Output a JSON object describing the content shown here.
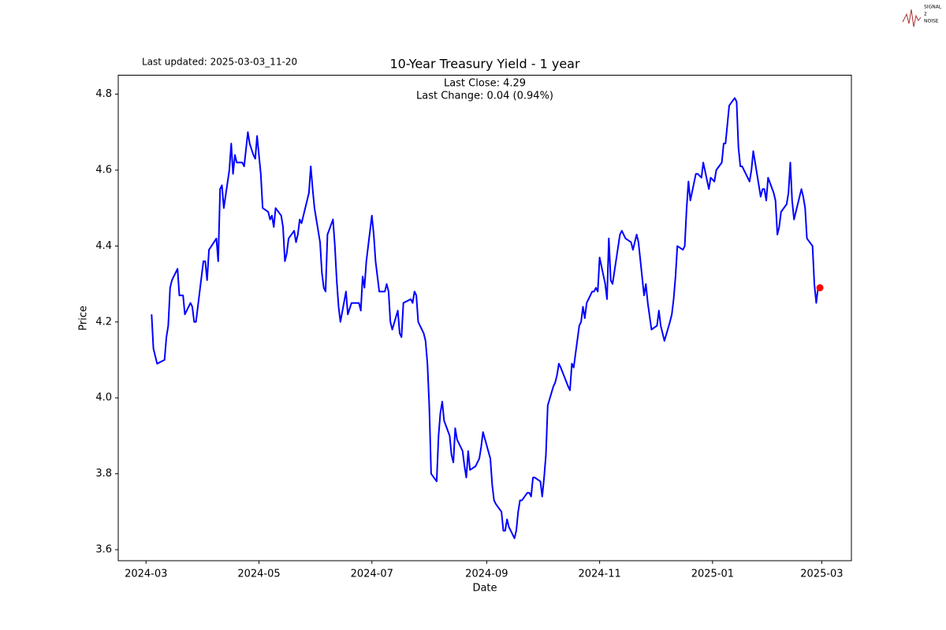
{
  "chart_data": {
    "type": "line",
    "title": "10-Year Treasury Yield - 1 year",
    "updated": "Last updated: 2025-03-03_11-20",
    "annotations": [
      "Last Close: 4.29",
      "Last Change: 0.04 (0.94%)"
    ],
    "logo": [
      "SIGNAL",
      "2",
      "NOISE"
    ],
    "xlabel": "Date",
    "ylabel": "Price",
    "color": "#0000ff",
    "last_marker_color": "#ff0000",
    "xlim": [
      "2024-02-15",
      "2025-03-17"
    ],
    "xticks": [
      {
        "value": "2024-03-01",
        "label": "2024-03"
      },
      {
        "value": "2024-05-01",
        "label": "2024-05"
      },
      {
        "value": "2024-07-01",
        "label": "2024-07"
      },
      {
        "value": "2024-09-01",
        "label": "2024-09"
      },
      {
        "value": "2024-11-01",
        "label": "2024-11"
      },
      {
        "value": "2025-01-01",
        "label": "2025-01"
      },
      {
        "value": "2025-03-01",
        "label": "2025-03"
      }
    ],
    "ylim": [
      3.571,
      4.85
    ],
    "yticks": [
      3.6,
      3.8,
      {
        "value": 4,
        "label": "4.0"
      },
      4.2,
      4.4,
      4.6,
      4.8
    ],
    "x": [
      "2024-03-04",
      "2024-03-05",
      "2024-03-07",
      "2024-03-11",
      "2024-03-12",
      "2024-03-13",
      "2024-03-14",
      "2024-03-15",
      "2024-03-18",
      "2024-03-19",
      "2024-03-21",
      "2024-03-22",
      "2024-03-25",
      "2024-03-26",
      "2024-03-27",
      "2024-03-28",
      "2024-04-01",
      "2024-04-02",
      "2024-04-03",
      "2024-04-04",
      "2024-04-08",
      "2024-04-09",
      "2024-04-10",
      "2024-04-11",
      "2024-04-12",
      "2024-04-15",
      "2024-04-16",
      "2024-04-17",
      "2024-04-18",
      "2024-04-19",
      "2024-04-22",
      "2024-04-23",
      "2024-04-25",
      "2024-04-26",
      "2024-04-28",
      "2024-04-29",
      "2024-04-30",
      "2024-05-02",
      "2024-05-03",
      "2024-05-06",
      "2024-05-07",
      "2024-05-08",
      "2024-05-09",
      "2024-05-10",
      "2024-05-13",
      "2024-05-14",
      "2024-05-15",
      "2024-05-16",
      "2024-05-17",
      "2024-05-20",
      "2024-05-21",
      "2024-05-22",
      "2024-05-23",
      "2024-05-24",
      "2024-05-28",
      "2024-05-29",
      "2024-05-30",
      "2024-05-31",
      "2024-06-03",
      "2024-06-04",
      "2024-06-05",
      "2024-06-06",
      "2024-06-07",
      "2024-06-10",
      "2024-06-11",
      "2024-06-12",
      "2024-06-13",
      "2024-06-14",
      "2024-06-17",
      "2024-06-18",
      "2024-06-20",
      "2024-06-24",
      "2024-06-25",
      "2024-06-26",
      "2024-06-27",
      "2024-06-28",
      "2024-07-01",
      "2024-07-02",
      "2024-07-03",
      "2024-07-05",
      "2024-07-08",
      "2024-07-09",
      "2024-07-10",
      "2024-07-11",
      "2024-07-12",
      "2024-07-15",
      "2024-07-16",
      "2024-07-17",
      "2024-07-18",
      "2024-07-22",
      "2024-07-23",
      "2024-07-24",
      "2024-07-25",
      "2024-07-26",
      "2024-07-29",
      "2024-07-30",
      "2024-07-31",
      "2024-08-01",
      "2024-08-02",
      "2024-08-05",
      "2024-08-06",
      "2024-08-07",
      "2024-08-08",
      "2024-08-09",
      "2024-08-12",
      "2024-08-13",
      "2024-08-14",
      "2024-08-15",
      "2024-08-16",
      "2024-08-19",
      "2024-08-20",
      "2024-08-21",
      "2024-08-22",
      "2024-08-23",
      "2024-08-26",
      "2024-08-27",
      "2024-08-28",
      "2024-08-29",
      "2024-08-30",
      "2024-09-03",
      "2024-09-04",
      "2024-09-05",
      "2024-09-06",
      "2024-09-09",
      "2024-09-10",
      "2024-09-11",
      "2024-09-12",
      "2024-09-13",
      "2024-09-16",
      "2024-09-17",
      "2024-09-18",
      "2024-09-19",
      "2024-09-20",
      "2024-09-23",
      "2024-09-24",
      "2024-09-25",
      "2024-09-26",
      "2024-09-27",
      "2024-09-30",
      "2024-10-01",
      "2024-10-02",
      "2024-10-03",
      "2024-10-04",
      "2024-10-07",
      "2024-10-08",
      "2024-10-09",
      "2024-10-10",
      "2024-10-11",
      "2024-10-15",
      "2024-10-16",
      "2024-10-17",
      "2024-10-18",
      "2024-10-21",
      "2024-10-22",
      "2024-10-23",
      "2024-10-24",
      "2024-10-25",
      "2024-10-28",
      "2024-10-29",
      "2024-10-30",
      "2024-10-31",
      "2024-11-01",
      "2024-11-04",
      "2024-11-05",
      "2024-11-06",
      "2024-11-07",
      "2024-11-08",
      "2024-11-12",
      "2024-11-13",
      "2024-11-14",
      "2024-11-15",
      "2024-11-18",
      "2024-11-19",
      "2024-11-20",
      "2024-11-21",
      "2024-11-22",
      "2024-11-25",
      "2024-11-26",
      "2024-11-27",
      "2024-11-29",
      "2024-12-02",
      "2024-12-03",
      "2024-12-04",
      "2024-12-05",
      "2024-12-06",
      "2024-12-09",
      "2024-12-10",
      "2024-12-11",
      "2024-12-12",
      "2024-12-13",
      "2024-12-16",
      "2024-12-17",
      "2024-12-18",
      "2024-12-19",
      "2024-12-20",
      "2024-12-23",
      "2024-12-24",
      "2024-12-26",
      "2024-12-27",
      "2024-12-30",
      "2024-12-31",
      "2025-01-02",
      "2025-01-03",
      "2025-01-06",
      "2025-01-07",
      "2025-01-08",
      "2025-01-10",
      "2025-01-13",
      "2025-01-14",
      "2025-01-15",
      "2025-01-16",
      "2025-01-17",
      "2025-01-21",
      "2025-01-22",
      "2025-01-23",
      "2025-01-24",
      "2025-01-27",
      "2025-01-28",
      "2025-01-29",
      "2025-01-30",
      "2025-01-31",
      "2025-02-03",
      "2025-02-04",
      "2025-02-05",
      "2025-02-06",
      "2025-02-07",
      "2025-02-10",
      "2025-02-11",
      "2025-02-12",
      "2025-02-13",
      "2025-02-14",
      "2025-02-18",
      "2025-02-19",
      "2025-02-20",
      "2025-02-21",
      "2025-02-24",
      "2025-02-25",
      "2025-02-26",
      "2025-02-27",
      "2025-02-28"
    ],
    "values": [
      4.22,
      4.13,
      4.09,
      4.1,
      4.16,
      4.19,
      4.29,
      4.31,
      4.34,
      4.27,
      4.27,
      4.22,
      4.25,
      4.24,
      4.2,
      4.2,
      4.36,
      4.36,
      4.31,
      4.39,
      4.42,
      4.36,
      4.55,
      4.56,
      4.5,
      4.6,
      4.67,
      4.59,
      4.64,
      4.62,
      4.62,
      4.61,
      4.7,
      4.67,
      4.64,
      4.63,
      4.69,
      4.59,
      4.5,
      4.49,
      4.47,
      4.48,
      4.45,
      4.5,
      4.48,
      4.45,
      4.36,
      4.38,
      4.42,
      4.44,
      4.41,
      4.43,
      4.47,
      4.46,
      4.54,
      4.61,
      4.55,
      4.5,
      4.41,
      4.33,
      4.29,
      4.28,
      4.43,
      4.47,
      4.4,
      4.31,
      4.24,
      4.2,
      4.28,
      4.22,
      4.25,
      4.25,
      4.23,
      4.32,
      4.29,
      4.36,
      4.48,
      4.43,
      4.36,
      4.28,
      4.28,
      4.3,
      4.28,
      4.2,
      4.18,
      4.23,
      4.17,
      4.16,
      4.25,
      4.26,
      4.25,
      4.28,
      4.27,
      4.2,
      4.17,
      4.15,
      4.09,
      3.98,
      3.8,
      3.78,
      3.9,
      3.96,
      3.99,
      3.94,
      3.9,
      3.85,
      3.83,
      3.92,
      3.89,
      3.86,
      3.82,
      3.79,
      3.86,
      3.81,
      3.82,
      3.83,
      3.84,
      3.87,
      3.91,
      3.84,
      3.77,
      3.73,
      3.72,
      3.7,
      3.65,
      3.65,
      3.68,
      3.66,
      3.63,
      3.65,
      3.7,
      3.73,
      3.73,
      3.75,
      3.75,
      3.74,
      3.79,
      3.79,
      3.78,
      3.74,
      3.79,
      3.85,
      3.98,
      4.03,
      4.04,
      4.06,
      4.09,
      4.08,
      4.03,
      4.02,
      4.09,
      4.08,
      4.19,
      4.2,
      4.24,
      4.21,
      4.25,
      4.28,
      4.28,
      4.29,
      4.28,
      4.37,
      4.3,
      4.26,
      4.42,
      4.31,
      4.3,
      4.43,
      4.44,
      4.43,
      4.42,
      4.41,
      4.39,
      4.41,
      4.43,
      4.41,
      4.27,
      4.3,
      4.25,
      4.18,
      4.19,
      4.23,
      4.19,
      4.17,
      4.15,
      4.2,
      4.22,
      4.26,
      4.32,
      4.4,
      4.39,
      4.4,
      4.5,
      4.57,
      4.52,
      4.59,
      4.59,
      4.58,
      4.62,
      4.55,
      4.58,
      4.57,
      4.6,
      4.62,
      4.67,
      4.67,
      4.77,
      4.79,
      4.78,
      4.66,
      4.61,
      4.61,
      4.57,
      4.6,
      4.65,
      4.62,
      4.53,
      4.55,
      4.55,
      4.52,
      4.58,
      4.54,
      4.52,
      4.43,
      4.45,
      4.49,
      4.51,
      4.54,
      4.62,
      4.52,
      4.47,
      4.55,
      4.53,
      4.5,
      4.42,
      4.4,
      4.3,
      4.25,
      4.29,
      4.29
    ]
  }
}
